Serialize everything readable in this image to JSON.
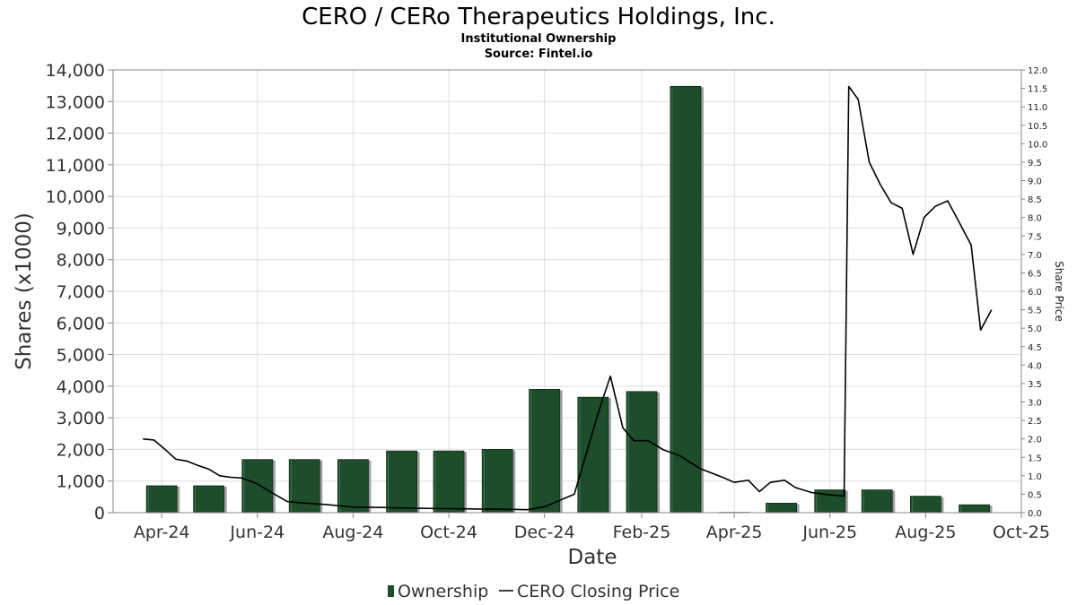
{
  "chart_data": {
    "type": "bar",
    "title": "CERO / CERo Therapeutics Holdings, Inc.",
    "subtitle_1": "Institutional Ownership",
    "subtitle_2": "Source: Fintel.io",
    "xlabel": "Date",
    "ylabel": "Shares (x1000)",
    "y2label": "Share Price",
    "ylim": [
      0,
      14000
    ],
    "y2lim": [
      0,
      12
    ],
    "yticks": [
      "0",
      "1,000",
      "2,000",
      "3,000",
      "4,000",
      "5,000",
      "6,000",
      "7,000",
      "8,000",
      "9,000",
      "10,000",
      "11,000",
      "12,000",
      "13,000",
      "14,000"
    ],
    "y2ticks": [
      "0.0",
      "0.5",
      "1.0",
      "1.5",
      "2.0",
      "2.5",
      "3.0",
      "3.5",
      "4.0",
      "4.5",
      "5.0",
      "5.5",
      "6.0",
      "6.5",
      "7.0",
      "7.5",
      "8.0",
      "8.5",
      "9.0",
      "9.5",
      "10.0",
      "10.5",
      "11.0",
      "11.5",
      "12.0"
    ],
    "xrange": [
      "2024-03-01",
      "2025-10-01"
    ],
    "xticks": [
      {
        "date": "2024-04-01",
        "label": "Apr-24"
      },
      {
        "date": "2024-06-01",
        "label": "Jun-24"
      },
      {
        "date": "2024-08-01",
        "label": "Aug-24"
      },
      {
        "date": "2024-10-01",
        "label": "Oct-24"
      },
      {
        "date": "2024-12-01",
        "label": "Dec-24"
      },
      {
        "date": "2025-02-01",
        "label": "Feb-25"
      },
      {
        "date": "2025-04-01",
        "label": "Apr-25"
      },
      {
        "date": "2025-06-01",
        "label": "Jun-25"
      },
      {
        "date": "2025-08-01",
        "label": "Aug-25"
      },
      {
        "date": "2025-10-01",
        "label": "Oct-25"
      }
    ],
    "grid": true,
    "legend_placement": "bottom-center",
    "series": [
      {
        "name": "Ownership",
        "kind": "bar",
        "color": "#1e4d2b",
        "points": [
          {
            "date": "2024-04-01",
            "value": 850
          },
          {
            "date": "2024-05-01",
            "value": 850
          },
          {
            "date": "2024-06-01",
            "value": 1680
          },
          {
            "date": "2024-07-01",
            "value": 1680
          },
          {
            "date": "2024-08-01",
            "value": 1680
          },
          {
            "date": "2024-09-01",
            "value": 1950
          },
          {
            "date": "2024-10-01",
            "value": 1950
          },
          {
            "date": "2024-11-01",
            "value": 2000
          },
          {
            "date": "2024-12-01",
            "value": 3900
          },
          {
            "date": "2025-01-01",
            "value": 3650
          },
          {
            "date": "2025-02-01",
            "value": 3830
          },
          {
            "date": "2025-03-01",
            "value": 13480
          },
          {
            "date": "2025-04-01",
            "value": 0
          },
          {
            "date": "2025-05-01",
            "value": 300
          },
          {
            "date": "2025-06-01",
            "value": 720
          },
          {
            "date": "2025-07-01",
            "value": 720
          },
          {
            "date": "2025-08-01",
            "value": 520
          },
          {
            "date": "2025-09-01",
            "value": 250
          }
        ]
      },
      {
        "name": "CERO Closing Price",
        "kind": "line",
        "color": "#000000",
        "points": [
          {
            "date": "2024-03-20",
            "value": 2.0
          },
          {
            "date": "2024-03-27",
            "value": 1.97
          },
          {
            "date": "2024-04-03",
            "value": 1.72
          },
          {
            "date": "2024-04-10",
            "value": 1.45
          },
          {
            "date": "2024-04-17",
            "value": 1.4
          },
          {
            "date": "2024-04-24",
            "value": 1.28
          },
          {
            "date": "2024-05-01",
            "value": 1.18
          },
          {
            "date": "2024-05-08",
            "value": 1.0
          },
          {
            "date": "2024-05-15",
            "value": 0.96
          },
          {
            "date": "2024-05-22",
            "value": 0.94
          },
          {
            "date": "2024-06-01",
            "value": 0.78
          },
          {
            "date": "2024-06-10",
            "value": 0.55
          },
          {
            "date": "2024-06-20",
            "value": 0.3
          },
          {
            "date": "2024-07-01",
            "value": 0.26
          },
          {
            "date": "2024-07-15",
            "value": 0.22
          },
          {
            "date": "2024-08-01",
            "value": 0.15
          },
          {
            "date": "2024-08-20",
            "value": 0.14
          },
          {
            "date": "2024-09-10",
            "value": 0.12
          },
          {
            "date": "2024-10-01",
            "value": 0.11
          },
          {
            "date": "2024-10-20",
            "value": 0.1
          },
          {
            "date": "2024-11-10",
            "value": 0.09
          },
          {
            "date": "2024-11-20",
            "value": 0.08
          },
          {
            "date": "2024-12-01",
            "value": 0.16
          },
          {
            "date": "2024-12-20",
            "value": 0.5
          },
          {
            "date": "2025-01-05",
            "value": 2.8
          },
          {
            "date": "2025-01-12",
            "value": 3.7
          },
          {
            "date": "2025-01-20",
            "value": 2.3
          },
          {
            "date": "2025-01-27",
            "value": 1.95
          },
          {
            "date": "2025-02-05",
            "value": 1.95
          },
          {
            "date": "2025-02-15",
            "value": 1.7
          },
          {
            "date": "2025-02-25",
            "value": 1.55
          },
          {
            "date": "2025-03-10",
            "value": 1.2
          },
          {
            "date": "2025-03-25",
            "value": 0.95
          },
          {
            "date": "2025-04-01",
            "value": 0.82
          },
          {
            "date": "2025-04-10",
            "value": 0.88
          },
          {
            "date": "2025-04-17",
            "value": 0.57
          },
          {
            "date": "2025-04-24",
            "value": 0.82
          },
          {
            "date": "2025-05-03",
            "value": 0.88
          },
          {
            "date": "2025-05-10",
            "value": 0.68
          },
          {
            "date": "2025-05-20",
            "value": 0.55
          },
          {
            "date": "2025-06-01",
            "value": 0.48
          },
          {
            "date": "2025-06-10",
            "value": 0.45
          },
          {
            "date": "2025-06-13",
            "value": 11.55
          },
          {
            "date": "2025-06-19",
            "value": 11.2
          },
          {
            "date": "2025-06-26",
            "value": 9.5
          },
          {
            "date": "2025-07-03",
            "value": 8.9
          },
          {
            "date": "2025-07-10",
            "value": 8.4
          },
          {
            "date": "2025-07-17",
            "value": 8.25
          },
          {
            "date": "2025-07-24",
            "value": 7.0
          },
          {
            "date": "2025-07-31",
            "value": 8.0
          },
          {
            "date": "2025-08-07",
            "value": 8.3
          },
          {
            "date": "2025-08-15",
            "value": 8.45
          },
          {
            "date": "2025-08-22",
            "value": 7.9
          },
          {
            "date": "2025-08-30",
            "value": 7.25
          },
          {
            "date": "2025-09-05",
            "value": 4.95
          },
          {
            "date": "2025-09-12",
            "value": 5.5
          }
        ]
      }
    ]
  }
}
